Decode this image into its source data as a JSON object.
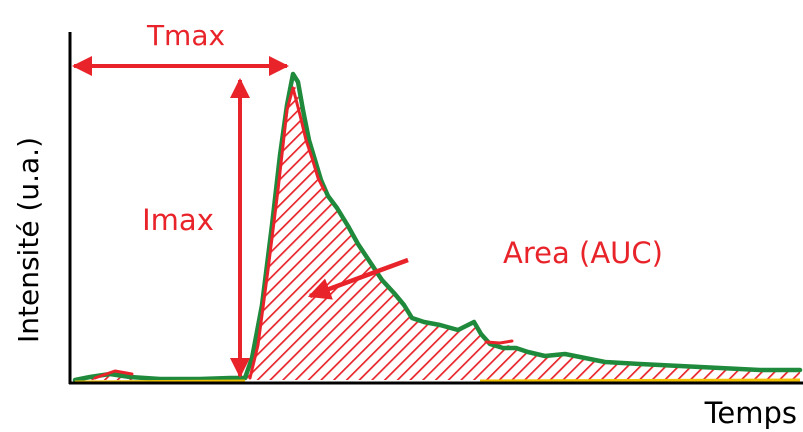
{
  "labels": {
    "tmax": "Tmax",
    "imax": "Imax",
    "area": "Area (AUC)",
    "y_axis": "Intensité (u.a.)",
    "x_axis": "Temps"
  },
  "colors": {
    "axis": "#000000",
    "annotation": "#e8242a",
    "curve": "#1f8a3c",
    "hatch": "#e8242a",
    "baseline": "#f0c000"
  }
}
